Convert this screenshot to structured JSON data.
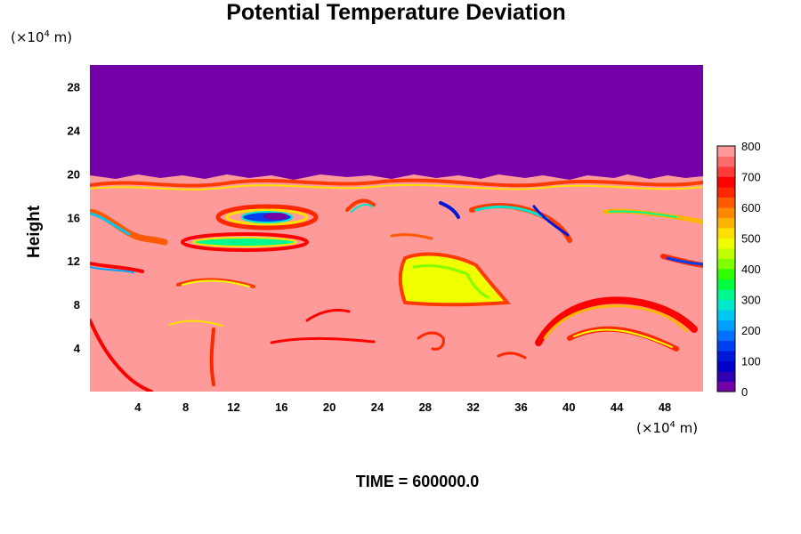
{
  "title": "Potential Temperature Deviation",
  "time_label": "TIME = 600000.0",
  "y_axis": {
    "label": "Height",
    "unit_prefix": "(×10",
    "unit_exp": "4",
    "unit_suffix": " m)"
  },
  "x_axis": {
    "unit_prefix": "(×10",
    "unit_exp": "4",
    "unit_suffix": " m)"
  },
  "colors": {
    "background_field": "#ff9a9a",
    "upper_layer": "#7400a8"
  },
  "chart_data": {
    "type": "heatmap",
    "title": "Potential Temperature Deviation",
    "ylabel": "Height",
    "xlabel": "",
    "x_unit": "(×10^4 m)",
    "y_unit": "(×10^4 m)",
    "xlim": [
      0,
      51.2
    ],
    "ylim": [
      0,
      30
    ],
    "x_ticks": [
      4,
      8,
      12,
      16,
      20,
      24,
      28,
      32,
      36,
      40,
      44,
      48
    ],
    "y_ticks": [
      4,
      8,
      12,
      16,
      20,
      24,
      28
    ],
    "colorbar": {
      "range": [
        0,
        800
      ],
      "ticks": [
        0,
        100,
        200,
        300,
        400,
        500,
        600,
        700,
        800
      ],
      "colors": [
        "#7400a8",
        "#2e00b0",
        "#0000c8",
        "#0018d8",
        "#0040f0",
        "#0070ff",
        "#00a0ff",
        "#00c8f0",
        "#00e8c8",
        "#00f890",
        "#00ff40",
        "#30ff00",
        "#80ff00",
        "#c0ff00",
        "#f0ff00",
        "#ffe000",
        "#ffb400",
        "#ff8800",
        "#ff5a00",
        "#ff2800",
        "#ff0000",
        "#ff3a3a",
        "#ff6c6c",
        "#ff9a9a"
      ]
    },
    "field_summary": {
      "upper_layer_top_y": 30,
      "upper_layer_bottom_y": 20,
      "upper_layer_value": 0,
      "background_value": 800
    }
  }
}
